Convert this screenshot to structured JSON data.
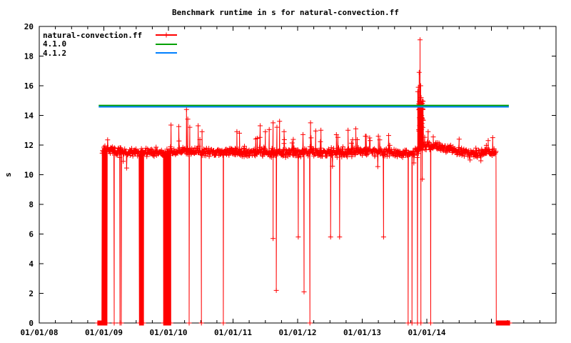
{
  "chart_data": {
    "type": "line",
    "title": "Benchmark runtime in s for natural-convection.ff",
    "xlabel": "",
    "ylabel": "s",
    "background": "#ffffff",
    "axis_color": "#000000",
    "grid": false,
    "legend_position": "top-left-inside",
    "x_axis": {
      "min_year": 2008,
      "max_year": 2016.0,
      "major_tick_years": [
        2008,
        2009,
        2010,
        2011,
        2012,
        2013,
        2014,
        2015,
        2016
      ],
      "minor_tick_interval_years": 0.25,
      "labels": [
        {
          "year": 2008,
          "text": "01/01/08"
        },
        {
          "year": 2009,
          "text": "01/01/09"
        },
        {
          "year": 2010,
          "text": "01/01/10"
        },
        {
          "year": 2011,
          "text": "01/01/11"
        },
        {
          "year": 2012,
          "text": "01/01/12"
        },
        {
          "year": 2013,
          "text": "01/01/13"
        },
        {
          "year": 2014,
          "text": "01/01/14"
        }
      ]
    },
    "y_axis": {
      "min": 0,
      "max": 20,
      "step": 2,
      "tick_values": [
        0,
        2,
        4,
        6,
        8,
        10,
        12,
        14,
        16,
        18,
        20
      ]
    },
    "legend": [
      {
        "label": "natural-convection.ff",
        "color": "#ff0000",
        "marker": "plus",
        "has_line": true
      },
      {
        "label": "4.1.0",
        "color": "#00a000",
        "marker": null,
        "has_line": true
      },
      {
        "label": "4.1.2",
        "color": "#0080ff",
        "marker": null,
        "has_line": true
      }
    ],
    "reference_lines": [
      {
        "name": "4.1.0",
        "value": 14.67,
        "color": "#00a000",
        "t0": 2008.92,
        "t1": 2015.27
      },
      {
        "name": "4.1.2",
        "value": 14.58,
        "color": "#0080ff",
        "t0": 2008.92,
        "t1": 2015.27
      }
    ],
    "series": {
      "name": "natural-convection.ff",
      "color": "#ff0000",
      "marker": "plus",
      "seed": 20130914,
      "band": {
        "t_start": 2008.975,
        "t_end": 2015.075,
        "sample_step_years": 0.006,
        "jitter": 0.35,
        "mean_profile": [
          [
            2008.975,
            11.7
          ],
          [
            2009.15,
            11.62
          ],
          [
            2009.4,
            11.5
          ],
          [
            2009.6,
            11.48
          ],
          [
            2009.8,
            11.55
          ],
          [
            2009.95,
            11.38
          ],
          [
            2010.05,
            11.5
          ],
          [
            2010.2,
            11.62
          ],
          [
            2010.35,
            11.6
          ],
          [
            2010.55,
            11.55
          ],
          [
            2010.75,
            11.48
          ],
          [
            2010.95,
            11.62
          ],
          [
            2011.15,
            11.52
          ],
          [
            2011.4,
            11.55
          ],
          [
            2011.7,
            11.5
          ],
          [
            2012.0,
            11.5
          ],
          [
            2012.3,
            11.55
          ],
          [
            2012.6,
            11.5
          ],
          [
            2012.9,
            11.55
          ],
          [
            2013.15,
            11.58
          ],
          [
            2013.45,
            11.42
          ],
          [
            2013.65,
            11.45
          ],
          [
            2013.82,
            11.55
          ],
          [
            2013.97,
            11.95
          ],
          [
            2014.15,
            11.88
          ],
          [
            2014.35,
            11.72
          ],
          [
            2014.6,
            11.5
          ],
          [
            2014.85,
            11.45
          ],
          [
            2015.0,
            11.55
          ],
          [
            2015.075,
            11.6
          ]
        ]
      },
      "outlier_regions": [
        {
          "t0": 2009.9,
          "t1": 2010.6,
          "prob": 0.05,
          "amp": 1.5
        },
        {
          "t0": 2011.3,
          "t1": 2011.95,
          "prob": 0.07,
          "amp": 1.6
        },
        {
          "t0": 2012.05,
          "t1": 2013.45,
          "prob": 0.05,
          "amp": 1.2
        },
        {
          "t0": 2013.96,
          "t1": 2014.3,
          "prob": 0.05,
          "amp": 0.8
        },
        {
          "t0": 2010.9,
          "t1": 2011.2,
          "prob": 0.04,
          "amp": 1.1
        },
        {
          "t0": 2008.9,
          "t1": 2015.2,
          "prob": 0.02,
          "amp": 0.6
        }
      ],
      "down_outlier_prob": 0.012,
      "down_outlier_amp": 1.0,
      "up_spikes": [
        [
          2010.04,
          13.35
        ],
        [
          2010.16,
          13.25
        ],
        [
          2010.28,
          14.4
        ],
        [
          2010.3,
          13.75
        ],
        [
          2010.33,
          13.2
        ],
        [
          2010.46,
          13.3
        ],
        [
          2010.52,
          12.9
        ],
        [
          2011.06,
          12.9
        ],
        [
          2011.1,
          12.8
        ],
        [
          2011.42,
          13.3
        ],
        [
          2011.5,
          12.9
        ],
        [
          2011.56,
          13.05
        ],
        [
          2011.62,
          13.5
        ],
        [
          2011.68,
          13.2
        ],
        [
          2011.72,
          13.6
        ],
        [
          2011.79,
          12.9
        ],
        [
          2012.2,
          13.5
        ],
        [
          2012.28,
          12.95
        ],
        [
          2012.36,
          13.0
        ],
        [
          2012.6,
          12.7
        ],
        [
          2012.78,
          13.0
        ],
        [
          2012.9,
          13.1
        ],
        [
          2013.05,
          12.6
        ],
        [
          2013.25,
          12.6
        ],
        [
          2013.86,
          15.6
        ],
        [
          2013.868,
          15.9
        ],
        [
          2013.882,
          16.9
        ],
        [
          2013.895,
          19.1
        ],
        [
          2013.905,
          16.0
        ],
        [
          2013.912,
          15.2
        ],
        [
          2013.925,
          14.8
        ],
        [
          2014.02,
          12.9
        ],
        [
          2014.1,
          12.55
        ],
        [
          2014.5,
          12.4
        ],
        [
          2014.95,
          12.3
        ],
        [
          2015.02,
          12.5
        ]
      ],
      "down_spikes": [
        [
          2009.3,
          10.9
        ],
        [
          2011.62,
          5.7
        ],
        [
          2012.01,
          5.8
        ],
        [
          2012.51,
          5.8
        ],
        [
          2012.65,
          5.8
        ],
        [
          2013.33,
          5.8
        ],
        [
          2011.67,
          2.2
        ],
        [
          2012.1,
          2.1
        ],
        [
          2013.93,
          9.7
        ]
      ],
      "burst": {
        "t0": 2013.874,
        "t1": 2013.946,
        "base": 12.7,
        "amp": 2.4,
        "step": 0.0016
      },
      "zero_runs": [
        [
          2008.905,
          2009.05
        ],
        [
          2009.55,
          2009.62
        ],
        [
          2009.925,
          2010.045
        ],
        [
          2015.075,
          2015.285
        ]
      ],
      "zero_run_step": 0.008,
      "zero_drops": [
        2009.16,
        2009.25,
        2009.27,
        2010.32,
        2010.51,
        2010.85,
        2012.19,
        2013.71,
        2013.77,
        2013.855,
        2013.908,
        2014.06,
        2015.075
      ]
    }
  }
}
